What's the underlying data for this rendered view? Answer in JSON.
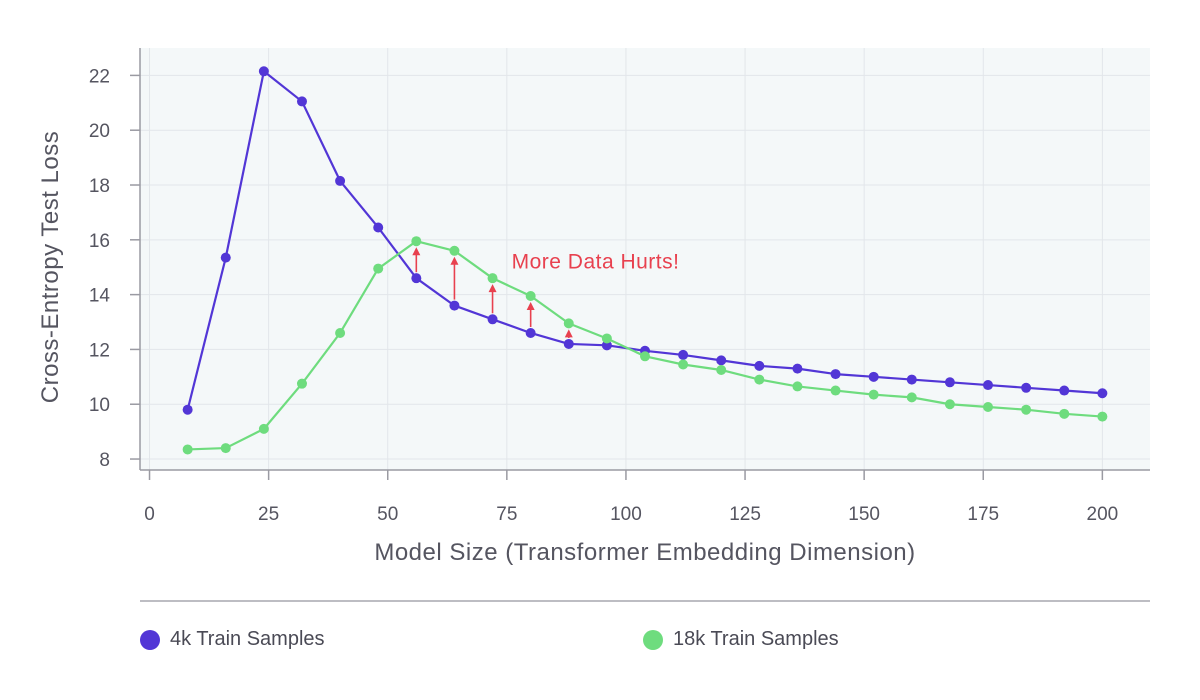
{
  "chart_data": {
    "type": "line",
    "xlabel": "Model Size (Transformer Embedding Dimension)",
    "ylabel": "Cross-Entropy Test Loss",
    "xlim": [
      -2,
      210
    ],
    "ylim": [
      7.6,
      23.0
    ],
    "xticks": [
      0,
      25,
      50,
      75,
      100,
      125,
      150,
      175,
      200
    ],
    "yticks": [
      8,
      10,
      12,
      14,
      16,
      18,
      20,
      22
    ],
    "grid": true,
    "x": [
      8,
      16,
      24,
      32,
      40,
      48,
      56,
      64,
      72,
      80,
      88,
      96,
      104,
      112,
      120,
      128,
      136,
      144,
      152,
      160,
      168,
      176,
      184,
      192,
      200
    ],
    "series": [
      {
        "name": "4k Train Samples",
        "color": "#5236d6",
        "values": [
          9.8,
          15.35,
          22.15,
          21.05,
          18.15,
          16.45,
          14.6,
          13.6,
          13.1,
          12.6,
          12.2,
          12.15,
          11.95,
          11.8,
          11.6,
          11.4,
          11.3,
          11.1,
          11.0,
          10.9,
          10.8,
          10.7,
          10.6,
          10.5,
          10.4
        ]
      },
      {
        "name": "18k Train Samples",
        "color": "#6edc7e",
        "values": [
          8.35,
          8.4,
          9.1,
          10.75,
          12.6,
          14.95,
          15.95,
          15.6,
          14.6,
          13.95,
          12.95,
          12.4,
          11.75,
          11.45,
          11.25,
          10.9,
          10.65,
          10.5,
          10.35,
          10.25,
          10.0,
          9.9,
          9.8,
          9.65,
          9.55
        ]
      }
    ],
    "annotation": {
      "text": "More Data Hurts!",
      "color": "#e8414f",
      "x": 76,
      "y": 14.95,
      "arrows_at_x": [
        56,
        64,
        72,
        80,
        88
      ]
    },
    "legend": "bottom"
  }
}
